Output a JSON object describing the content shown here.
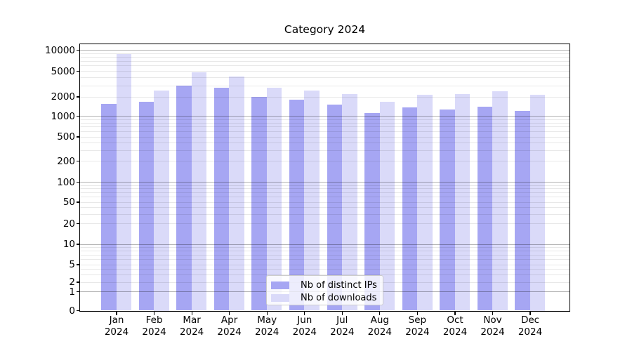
{
  "title": "Category 2024",
  "chart_data": {
    "type": "bar",
    "title": "Category 2024",
    "scale": "symlog",
    "xlabel": "",
    "ylabel": "",
    "categories": [
      "Jan",
      "Feb",
      "Mar",
      "Apr",
      "May",
      "Jun",
      "Jul",
      "Aug",
      "Sep",
      "Oct",
      "Nov",
      "Dec"
    ],
    "year_label": "2024",
    "series": [
      {
        "name": "Nb of distinct IPs",
        "color": "#a6a6f3",
        "values": [
          1560,
          1670,
          2980,
          2770,
          2000,
          1810,
          1500,
          1110,
          1370,
          1250,
          1380,
          1190
        ]
      },
      {
        "name": "Nb of downloads",
        "color": "#dadaf9",
        "values": [
          8700,
          2490,
          4740,
          4130,
          2780,
          2480,
          2190,
          1670,
          2120,
          2210,
          2400,
          2140
        ]
      }
    ],
    "yticks": [
      0,
      1,
      2,
      5,
      10,
      20,
      50,
      100,
      200,
      500,
      1000,
      2000,
      5000,
      10000
    ],
    "minor_yticks": [
      3,
      4,
      6,
      7,
      8,
      9,
      30,
      40,
      60,
      70,
      80,
      90,
      300,
      400,
      600,
      700,
      800,
      900,
      3000,
      4000,
      6000,
      7000,
      8000,
      9000
    ],
    "ylim": [
      0,
      13000
    ],
    "grid": true,
    "legend_position": "lower center"
  }
}
